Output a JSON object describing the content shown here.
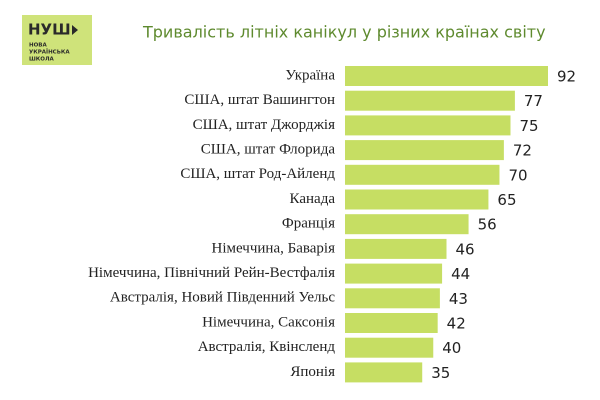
{
  "logo": {
    "mark": "НУШ",
    "lines": [
      "НОВА",
      "УКРАЇНСЬКА",
      "ШКОЛА"
    ]
  },
  "chart_data": {
    "type": "bar",
    "orientation": "horizontal",
    "title": "Тривалість літніх канікул у різних країнах світу",
    "categories": [
      "Україна",
      "США, штат Вашингтон",
      "США, штат Джорджія",
      "США, штат Флорида",
      "США, штат Род-Айленд",
      "Канада",
      "Франція",
      "Німеччина, Баварія",
      "Німеччина, Північний Рейн-Вестфалія",
      "Австралія, Новий Південний Уельс",
      "Німеччина, Саксонія",
      "Австралія, Квінсленд",
      "Японія"
    ],
    "values": [
      92,
      77,
      75,
      72,
      70,
      65,
      56,
      46,
      44,
      43,
      42,
      40,
      35
    ],
    "color": "#c6de63"
  }
}
